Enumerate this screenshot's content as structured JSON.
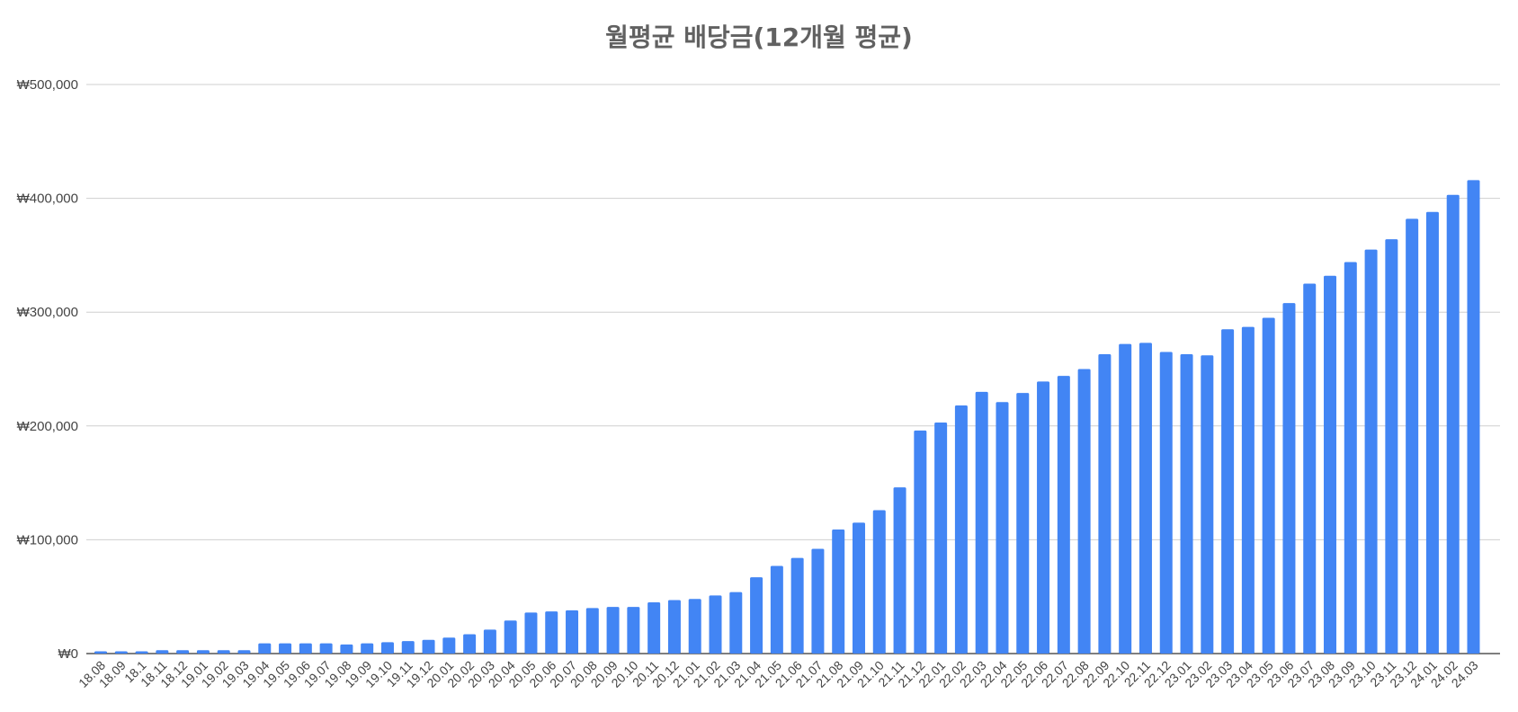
{
  "chart_data": {
    "type": "bar",
    "title": "월평균 배당금(12개월 평균)",
    "xlabel": "",
    "ylabel": "",
    "ylim": [
      0,
      500000
    ],
    "yticks": [
      0,
      100000,
      200000,
      300000,
      400000,
      500000
    ],
    "ytick_labels": [
      "₩0",
      "₩100,000",
      "₩200,000",
      "₩300,000",
      "₩400,000",
      "₩500,000"
    ],
    "grid": true,
    "legend": "none",
    "bar_color": "#4285f4",
    "categories": [
      "18.08",
      "18.09",
      "18.1",
      "18.11",
      "18.12",
      "19.01",
      "19.02",
      "19.03",
      "19.04",
      "19.05",
      "19.06",
      "19.07",
      "19.08",
      "19.09",
      "19.10",
      "19.11",
      "19.12",
      "20.01",
      "20.02",
      "20.03",
      "20.04",
      "20.05",
      "20.06",
      "20.07",
      "20.08",
      "20.09",
      "20.10",
      "20.11",
      "20.12",
      "21.01",
      "21.02",
      "21.03",
      "21.04",
      "21.05",
      "21.06",
      "21.07",
      "21.08",
      "21.09",
      "21.10",
      "21.11",
      "21.12",
      "22.01",
      "22.02",
      "22.03",
      "22.04",
      "22.05",
      "22.06",
      "22.07",
      "22.08",
      "22.09",
      "22.10",
      "22.11",
      "22.12",
      "23.01",
      "23.02",
      "23.03",
      "23.04",
      "23.05",
      "23.06",
      "23.07",
      "23.08",
      "23.09",
      "23.10",
      "23.11",
      "23.12",
      "24.01",
      "24.02",
      "24.03"
    ],
    "values": [
      2000,
      2000,
      2000,
      3000,
      3000,
      3000,
      3000,
      3000,
      9000,
      9000,
      9000,
      9000,
      8000,
      9000,
      10000,
      11000,
      12000,
      14000,
      17000,
      21000,
      29000,
      36000,
      37000,
      38000,
      40000,
      41000,
      41000,
      45000,
      47000,
      48000,
      51000,
      54000,
      67000,
      77000,
      84000,
      92000,
      109000,
      115000,
      126000,
      146000,
      196000,
      203000,
      218000,
      230000,
      221000,
      229000,
      239000,
      244000,
      250000,
      263000,
      272000,
      273000,
      265000,
      263000,
      262000,
      285000,
      287000,
      295000,
      308000,
      325000,
      332000,
      344000,
      355000,
      364000,
      382000,
      388000,
      403000,
      416000
    ]
  }
}
